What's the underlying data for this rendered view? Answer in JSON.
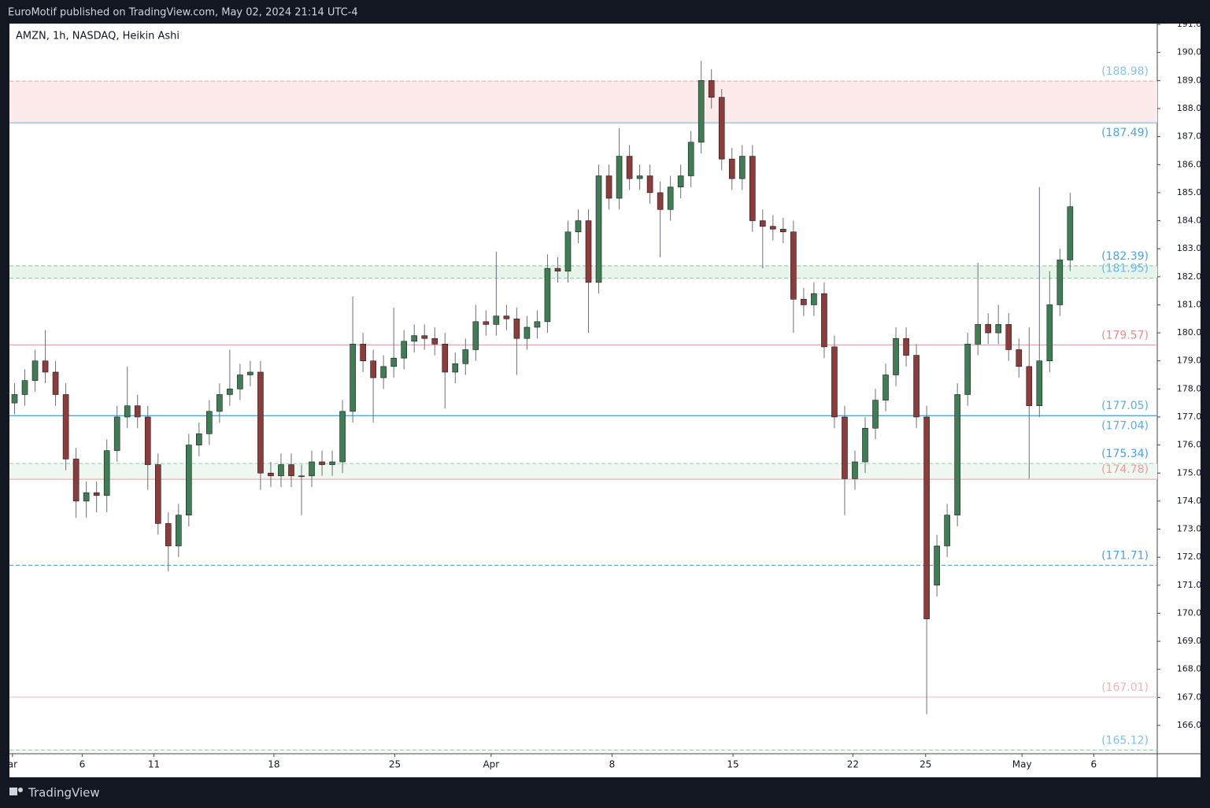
{
  "header": {
    "title": "EuroMotif published on TradingView.com, May 02, 2024 21:14 UTC-4"
  },
  "footer": {
    "brand": "TradingView"
  },
  "chart_data": {
    "type": "candlestick",
    "title": "AMZN, 1h, NASDAQ, Heikin Ashi",
    "up_color": "#3f7d55",
    "down_color": "#8e3b3b",
    "wick_color": "#6b6f7a",
    "ylim": [
      164.99,
      191.03
    ],
    "yticks": [
      {
        "value": 166,
        "label": "166.00"
      },
      {
        "value": 167,
        "label": "167.00"
      },
      {
        "value": 168,
        "label": "168.00"
      },
      {
        "value": 169,
        "label": "169.00"
      },
      {
        "value": 170,
        "label": "170.00"
      },
      {
        "value": 171,
        "label": "171.00"
      },
      {
        "value": 172,
        "label": "172.00"
      },
      {
        "value": 173,
        "label": "173.00"
      },
      {
        "value": 174,
        "label": "174.00"
      },
      {
        "value": 175,
        "label": "175.00"
      },
      {
        "value": 176,
        "label": "176.00"
      },
      {
        "value": 177,
        "label": "177.00"
      },
      {
        "value": 178,
        "label": "178.00"
      },
      {
        "value": 179,
        "label": "179.00"
      },
      {
        "value": 180,
        "label": "180.00"
      },
      {
        "value": 181,
        "label": "181.00"
      },
      {
        "value": 182,
        "label": "182.00"
      },
      {
        "value": 183,
        "label": "183.00"
      },
      {
        "value": 184,
        "label": "184.00"
      },
      {
        "value": 185,
        "label": "185.00"
      },
      {
        "value": 186,
        "label": "186.00"
      },
      {
        "value": 187,
        "label": "187.00"
      },
      {
        "value": 188,
        "label": "188.00"
      },
      {
        "value": 189,
        "label": "189.00"
      },
      {
        "value": 190,
        "label": "190.00"
      },
      {
        "value": 191,
        "label": "191.00"
      }
    ],
    "xlim": [
      0,
      112
    ],
    "xticks": [
      {
        "value": 0.3,
        "label": "ar"
      },
      {
        "value": 7.1,
        "label": "6"
      },
      {
        "value": 14.1,
        "label": "11"
      },
      {
        "value": 25.8,
        "label": "18"
      },
      {
        "value": 37.6,
        "label": "25"
      },
      {
        "value": 47.0,
        "label": "Apr"
      },
      {
        "value": 58.8,
        "label": "8"
      },
      {
        "value": 70.6,
        "label": "15"
      },
      {
        "value": 82.3,
        "label": "22"
      },
      {
        "value": 89.4,
        "label": "25"
      },
      {
        "value": 98.8,
        "label": "May"
      },
      {
        "value": 105.8,
        "label": "6"
      }
    ],
    "open": [
      177.5,
      177.8,
      178.3,
      179.0,
      178.6,
      177.8,
      175.5,
      174.0,
      174.3,
      174.2,
      175.8,
      177.0,
      177.4,
      177.0,
      175.3,
      173.2,
      172.4,
      173.5,
      176.0,
      176.4,
      177.2,
      177.8,
      178.0,
      178.5,
      178.6,
      175.0,
      174.9,
      175.3,
      174.9,
      174.9,
      175.4,
      175.3,
      175.4,
      177.2,
      179.6,
      179.0,
      178.4,
      178.8,
      179.1,
      179.7,
      179.9,
      179.8,
      179.6,
      178.6,
      178.9,
      179.4,
      180.4,
      180.3,
      180.6,
      180.5,
      179.8,
      180.2,
      180.4,
      182.3,
      182.2,
      183.6,
      184.0,
      181.8,
      185.6,
      184.8,
      186.3,
      185.5,
      185.6,
      185.0,
      184.4,
      185.2,
      185.6,
      186.8,
      189.0,
      188.4,
      186.2,
      185.5,
      186.3,
      184.0,
      183.8,
      183.7,
      183.6,
      181.2,
      181.0,
      181.4,
      179.5,
      177.0,
      174.8,
      175.4,
      176.6,
      177.6,
      178.5,
      179.8,
      179.2,
      177.0,
      171.0,
      172.4,
      173.5,
      177.8,
      179.6,
      180.3,
      180.0,
      180.3,
      179.4,
      178.8,
      177.4,
      179.0,
      181.0,
      182.6
    ],
    "high": [
      178.2,
      178.7,
      179.4,
      180.1,
      179.0,
      178.2,
      175.9,
      174.7,
      174.7,
      176.2,
      177.4,
      178.8,
      177.8,
      177.4,
      175.7,
      173.6,
      173.9,
      176.4,
      176.8,
      177.6,
      178.2,
      179.4,
      178.9,
      179.0,
      179.0,
      175.4,
      175.7,
      175.7,
      175.3,
      175.8,
      175.8,
      175.8,
      177.6,
      181.3,
      180.0,
      179.4,
      179.2,
      180.9,
      180.1,
      180.3,
      180.3,
      180.2,
      180.0,
      179.3,
      179.8,
      181.0,
      180.8,
      182.9,
      181.0,
      180.9,
      180.6,
      180.8,
      182.8,
      182.7,
      184.0,
      184.4,
      184.4,
      186.0,
      186.0,
      187.3,
      186.7,
      186.0,
      186.0,
      185.4,
      185.6,
      186.0,
      187.2,
      189.7,
      189.4,
      188.7,
      186.6,
      186.7,
      186.7,
      184.4,
      184.2,
      184.1,
      184.0,
      181.6,
      181.8,
      181.8,
      179.9,
      177.4,
      175.8,
      177.0,
      178.0,
      178.9,
      180.2,
      180.2,
      179.6,
      177.4,
      172.8,
      173.9,
      178.2,
      180.0,
      182.5,
      180.7,
      181.0,
      180.7,
      179.8,
      180.2,
      185.2,
      182.2,
      183.0,
      185.0
    ],
    "low": [
      177.1,
      177.4,
      177.9,
      178.2,
      177.4,
      175.1,
      173.4,
      173.4,
      173.6,
      173.6,
      175.4,
      176.6,
      176.6,
      174.4,
      172.8,
      171.5,
      172.0,
      173.1,
      175.6,
      176.0,
      176.8,
      177.4,
      177.6,
      178.1,
      174.4,
      174.5,
      174.5,
      174.5,
      173.5,
      174.5,
      174.9,
      174.9,
      175.0,
      176.8,
      178.6,
      176.8,
      178.0,
      178.4,
      178.7,
      179.3,
      179.4,
      179.2,
      177.3,
      178.2,
      178.5,
      179.0,
      179.9,
      179.9,
      180.1,
      178.5,
      179.4,
      179.8,
      180.0,
      181.8,
      181.8,
      183.2,
      180.0,
      181.4,
      184.4,
      184.4,
      185.1,
      185.1,
      184.6,
      182.7,
      184.0,
      184.8,
      185.2,
      186.4,
      188.0,
      185.8,
      185.1,
      185.1,
      183.6,
      182.3,
      183.3,
      183.2,
      180.0,
      180.6,
      180.6,
      179.1,
      176.6,
      173.5,
      174.4,
      175.0,
      176.2,
      177.2,
      178.1,
      178.8,
      176.6,
      166.4,
      170.6,
      172.0,
      173.1,
      177.4,
      179.2,
      179.6,
      179.6,
      179.0,
      178.4,
      174.8,
      177.0,
      178.6,
      180.6,
      182.2
    ],
    "close": [
      177.8,
      178.3,
      179.0,
      178.6,
      177.8,
      175.5,
      174.0,
      174.3,
      174.2,
      175.8,
      177.0,
      177.4,
      177.0,
      175.3,
      173.2,
      172.4,
      173.5,
      176.0,
      176.4,
      177.2,
      177.8,
      178.0,
      178.5,
      178.6,
      175.0,
      174.9,
      175.3,
      174.9,
      174.9,
      175.4,
      175.3,
      175.4,
      177.2,
      179.6,
      179.0,
      178.4,
      178.8,
      179.1,
      179.7,
      179.9,
      179.8,
      179.6,
      178.6,
      178.9,
      179.4,
      180.4,
      180.3,
      180.6,
      180.5,
      179.8,
      180.2,
      180.4,
      182.3,
      182.2,
      183.6,
      184.0,
      181.8,
      185.6,
      184.8,
      186.3,
      185.5,
      185.6,
      185.0,
      184.4,
      185.2,
      185.6,
      186.8,
      189.0,
      188.4,
      186.2,
      185.5,
      186.3,
      184.0,
      183.8,
      183.7,
      183.6,
      181.2,
      181.0,
      181.4,
      179.5,
      177.0,
      174.8,
      175.4,
      176.6,
      177.6,
      178.5,
      179.8,
      179.2,
      177.0,
      169.8,
      172.4,
      173.5,
      177.8,
      179.6,
      180.3,
      180.0,
      180.3,
      179.4,
      178.8,
      177.4,
      179.0,
      181.0,
      182.6,
      184.5
    ],
    "zones": [
      {
        "from": 187.49,
        "to": 188.98,
        "color": "#fdeaea"
      },
      {
        "from": 181.95,
        "to": 182.39,
        "color": "#e6f4ea"
      },
      {
        "from": 174.78,
        "to": 175.34,
        "color": "#eef8f0"
      }
    ],
    "levels": [
      {
        "value": 188.98,
        "label": "(188.98)",
        "color": "#86c5ee",
        "line": "#f0a8a8",
        "dash": true,
        "pos": "above"
      },
      {
        "value": 187.49,
        "label": "(187.49)",
        "color": "#4aa3e6",
        "line": "#8dbdf0",
        "dash": false,
        "pos": "below"
      },
      {
        "value": 182.39,
        "label": "(182.39)",
        "color": "#4aa3e6",
        "line": "#9ccfb0",
        "dash": true,
        "pos": "above"
      },
      {
        "value": 181.95,
        "label": "(181.95)",
        "color": "#6bb6e8",
        "line": "#9ccfb0",
        "dash": true,
        "pos": "above"
      },
      {
        "value": 179.57,
        "label": "(179.57)",
        "color": "#e88c8c",
        "line": "#e8aaaa",
        "dash": false,
        "pos": "above"
      },
      {
        "value": 177.05,
        "label": "(177.05)",
        "color": "#5aaee8",
        "line": "#5aa9e6",
        "dash": false,
        "pos": "above"
      },
      {
        "value": 177.04,
        "label": "(177.04)",
        "color": "#5aaee8",
        "line": "#5aa9e6",
        "dash": false,
        "pos": "below"
      },
      {
        "value": 175.34,
        "label": "(175.34)",
        "color": "#4aa3e6",
        "line": "#a8d8b8",
        "dash": true,
        "pos": "above"
      },
      {
        "value": 174.78,
        "label": "(174.78)",
        "color": "#ee9a9a",
        "line": "#e8b4b4",
        "dash": false,
        "pos": "above"
      },
      {
        "value": 171.71,
        "label": "(171.71)",
        "color": "#4aa3e6",
        "line": "#6a9ee0",
        "dash": true,
        "pos": "above"
      },
      {
        "value": 167.01,
        "label": "(167.01)",
        "color": "#f4b4b4",
        "line": "#f4c8c8",
        "dash": false,
        "pos": "above"
      },
      {
        "value": 165.12,
        "label": "(165.12)",
        "color": "#7fc0ea",
        "line": "#9ccfb0",
        "dash": true,
        "pos": "above"
      }
    ]
  }
}
